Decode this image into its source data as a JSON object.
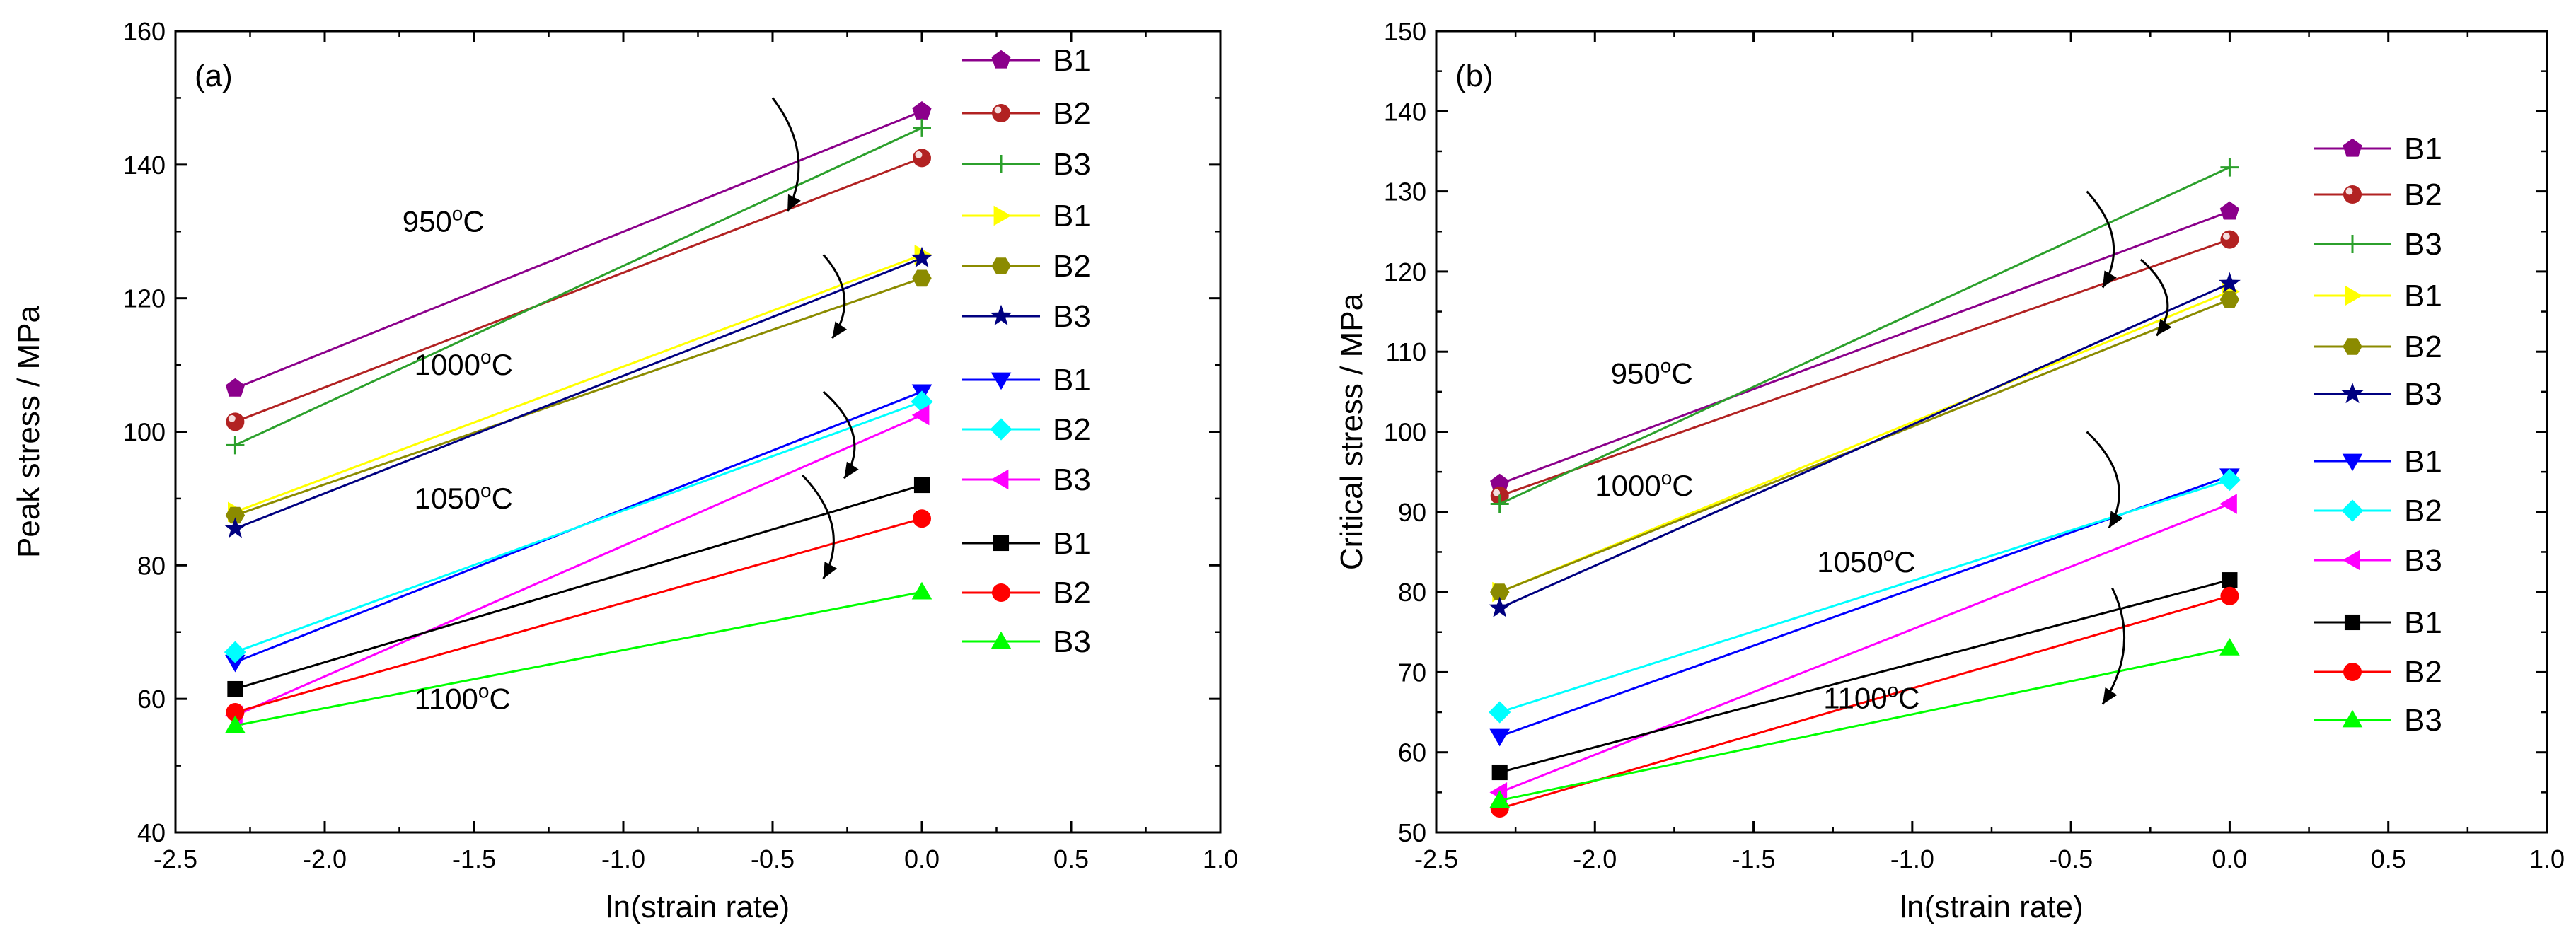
{
  "figure": {
    "background": "#ffffff",
    "series_styles": [
      {
        "key": "950_B1",
        "name": "B1",
        "color": "#8b008b",
        "marker": "pentagon"
      },
      {
        "key": "950_B2",
        "name": "B2",
        "color": "#b22222",
        "marker": "ball"
      },
      {
        "key": "950_B3",
        "name": "B3",
        "color": "#2ca02c",
        "marker": "plus"
      },
      {
        "key": "1000_B1",
        "name": "B1",
        "color": "#ffff00",
        "marker": "triangle-right"
      },
      {
        "key": "1000_B2",
        "name": "B2",
        "color": "#8b8b00",
        "marker": "hexagon"
      },
      {
        "key": "1000_B3",
        "name": "B3",
        "color": "#000080",
        "marker": "star"
      },
      {
        "key": "1050_B1",
        "name": "B1",
        "color": "#0000ff",
        "marker": "triangle-down"
      },
      {
        "key": "1050_B2",
        "name": "B2",
        "color": "#00ffff",
        "marker": "diamond"
      },
      {
        "key": "1050_B3",
        "name": "B3",
        "color": "#ff00ff",
        "marker": "triangle-left"
      },
      {
        "key": "1100_B1",
        "name": "B1",
        "color": "#000000",
        "marker": "square"
      },
      {
        "key": "1100_B2",
        "name": "B2",
        "color": "#ff0000",
        "marker": "circle"
      },
      {
        "key": "1100_B3",
        "name": "B3",
        "color": "#00ff00",
        "marker": "triangle-up"
      }
    ]
  },
  "chart_data": [
    {
      "type": "line",
      "panel_label": "(a)",
      "xlabel": "ln(strain rate)",
      "ylabel": "Peak stress / MPa",
      "xlim": [
        -2.5,
        1.0
      ],
      "ylim": [
        40,
        160
      ],
      "xticks": [
        -2.5,
        -2.0,
        -1.5,
        -1.0,
        -0.5,
        0.0,
        0.5,
        1.0
      ],
      "xtick_labels": [
        "-2.5",
        "-2.0",
        "-1.5",
        "-1.0",
        "-0.5",
        "0.0",
        "0.5",
        "1.0"
      ],
      "yticks": [
        40,
        60,
        80,
        100,
        120,
        140,
        160
      ],
      "ytick_labels": [
        "40",
        "60",
        "80",
        "100",
        "120",
        "140",
        "160"
      ],
      "x": [
        -2.3,
        0.0
      ],
      "series": [
        {
          "style": "950_B1",
          "values": [
            106.5,
            148
          ]
        },
        {
          "style": "950_B2",
          "values": [
            101.5,
            141
          ]
        },
        {
          "style": "950_B3",
          "values": [
            98,
            145.5
          ]
        },
        {
          "style": "1000_B1",
          "values": [
            88,
            126.5
          ]
        },
        {
          "style": "1000_B2",
          "values": [
            87.5,
            123
          ]
        },
        {
          "style": "1000_B3",
          "values": [
            85.5,
            126
          ]
        },
        {
          "style": "1050_B1",
          "values": [
            65.5,
            106
          ]
        },
        {
          "style": "1050_B2",
          "values": [
            67,
            104.5
          ]
        },
        {
          "style": "1050_B3",
          "values": [
            57.5,
            102.5
          ]
        },
        {
          "style": "1100_B1",
          "values": [
            61.5,
            92
          ]
        },
        {
          "style": "1100_B2",
          "values": [
            58,
            87
          ]
        },
        {
          "style": "1100_B3",
          "values": [
            56,
            76
          ]
        }
      ],
      "temp_labels": [
        {
          "base": "950",
          "sup": "o",
          "unit": "C",
          "x": -1.74,
          "y": 130
        },
        {
          "base": "1000",
          "sup": "o",
          "unit": "C",
          "x": -1.7,
          "y": 108.5
        },
        {
          "base": "1050",
          "sup": "o",
          "unit": "C",
          "x": -1.7,
          "y": 88.5
        },
        {
          "base": "1100",
          "sup": "o",
          "unit": "C",
          "x": -1.7,
          "y": 58.5
        }
      ],
      "arrows": [
        {
          "x1": -0.5,
          "y1": 150,
          "x2": -0.45,
          "y2": 133
        },
        {
          "x1": -0.33,
          "y1": 126.5,
          "x2": -0.3,
          "y2": 114
        },
        {
          "x1": -0.33,
          "y1": 106,
          "x2": -0.26,
          "y2": 93
        },
        {
          "x1": -0.4,
          "y1": 93.5,
          "x2": -0.33,
          "y2": 78
        }
      ],
      "legend": {
        "placement": "right",
        "groups": [
          [
            "950_B1",
            "950_B2",
            "950_B3",
            "1000_B1",
            "1000_B2",
            "1000_B3"
          ],
          [
            "1050_B1",
            "1050_B2",
            "1050_B3"
          ],
          [
            "1100_B1",
            "1100_B2",
            "1100_B3"
          ]
        ]
      }
    },
    {
      "type": "line",
      "panel_label": "(b)",
      "xlabel": "ln(strain rate)",
      "ylabel": "Critical stress / MPa",
      "xlim": [
        -2.5,
        1.0
      ],
      "ylim": [
        50,
        150
      ],
      "xticks": [
        -2.5,
        -2.0,
        -1.5,
        -1.0,
        -0.5,
        0.0,
        0.5,
        1.0
      ],
      "xtick_labels": [
        "-2.5",
        "-2.0",
        "-1.5",
        "-1.0",
        "-0.5",
        "0.0",
        "0.5",
        "1.0"
      ],
      "yticks": [
        50,
        60,
        70,
        80,
        90,
        100,
        110,
        120,
        130,
        140,
        150
      ],
      "ytick_labels": [
        "50",
        "60",
        "70",
        "80",
        "90",
        "100",
        "110",
        "120",
        "130",
        "140",
        "150"
      ],
      "x": [
        -2.3,
        0.0
      ],
      "series": [
        {
          "style": "950_B1",
          "values": [
            93.5,
            127.5
          ]
        },
        {
          "style": "950_B2",
          "values": [
            92,
            124
          ]
        },
        {
          "style": "950_B3",
          "values": [
            91,
            133
          ]
        },
        {
          "style": "1000_B1",
          "values": [
            80,
            117.5
          ]
        },
        {
          "style": "1000_B2",
          "values": [
            80,
            116.5
          ]
        },
        {
          "style": "1000_B3",
          "values": [
            78,
            118.5
          ]
        },
        {
          "style": "1050_B1",
          "values": [
            62,
            94.5
          ]
        },
        {
          "style": "1050_B2",
          "values": [
            65,
            94
          ]
        },
        {
          "style": "1050_B3",
          "values": [
            55,
            91
          ]
        },
        {
          "style": "1100_B1",
          "values": [
            57.5,
            81.5
          ]
        },
        {
          "style": "1100_B2",
          "values": [
            53,
            79.5
          ]
        },
        {
          "style": "1100_B3",
          "values": [
            54,
            73
          ]
        }
      ],
      "temp_labels": [
        {
          "base": "950",
          "sup": "o",
          "unit": "C",
          "x": -1.95,
          "y": 106
        },
        {
          "base": "1000",
          "sup": "o",
          "unit": "C",
          "x": -2.0,
          "y": 92
        },
        {
          "base": "1050",
          "sup": "o",
          "unit": "C",
          "x": -1.3,
          "y": 82.5
        },
        {
          "base": "1100",
          "sup": "o",
          "unit": "C",
          "x": -1.28,
          "y": 65.5
        }
      ],
      "arrows": [
        {
          "x1": -0.45,
          "y1": 130,
          "x2": -0.4,
          "y2": 118
        },
        {
          "x1": -0.28,
          "y1": 121.5,
          "x2": -0.23,
          "y2": 112
        },
        {
          "x1": -0.45,
          "y1": 100,
          "x2": -0.38,
          "y2": 88
        },
        {
          "x1": -0.37,
          "y1": 80.5,
          "x2": -0.4,
          "y2": 66
        }
      ],
      "legend": {
        "placement": "right",
        "groups": [
          [
            "950_B1",
            "950_B2",
            "950_B3",
            "1000_B1",
            "1000_B2",
            "1000_B3"
          ],
          [
            "1050_B1",
            "1050_B2",
            "1050_B3"
          ],
          [
            "1100_B1",
            "1100_B2",
            "1100_B3"
          ]
        ]
      }
    }
  ]
}
